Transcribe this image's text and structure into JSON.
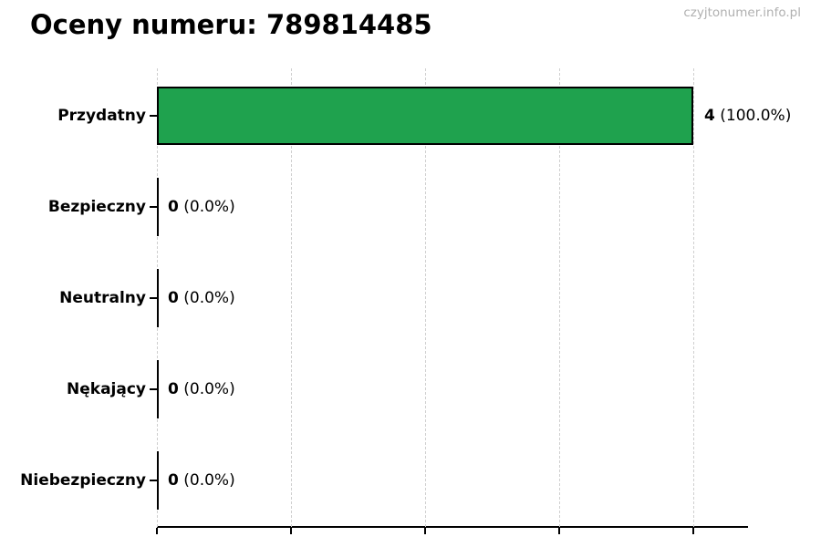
{
  "title": "Oceny numeru: 789814485",
  "watermark": "czyjtonumer.info.pl",
  "chart_data": {
    "type": "bar",
    "orientation": "horizontal",
    "title": "Oceny numeru: 789814485",
    "categories": [
      "Przydatny",
      "Bezpieczny",
      "Neutralny",
      "Nękający",
      "Niebezpieczny"
    ],
    "values": [
      4,
      0,
      0,
      0,
      0
    ],
    "percent_labels": [
      "100.0%",
      "0.0%",
      "0.0%",
      "0.0%",
      "0.0%"
    ],
    "value_labels": [
      "4 (100.0%)",
      "0 (0.0%)",
      "0 (0.0%)",
      "0 (0.0%)",
      "0 (0.0%)"
    ],
    "xticks": [
      0,
      1,
      2,
      3,
      4
    ],
    "xlim": [
      0,
      4.4
    ],
    "grid": true,
    "grid_style": "dashed",
    "grid_color": "#cfcfcf",
    "bar_color": "#1fa24e",
    "bar_edge_color": "#000000",
    "axis_color": "#000000",
    "legend": false
  }
}
